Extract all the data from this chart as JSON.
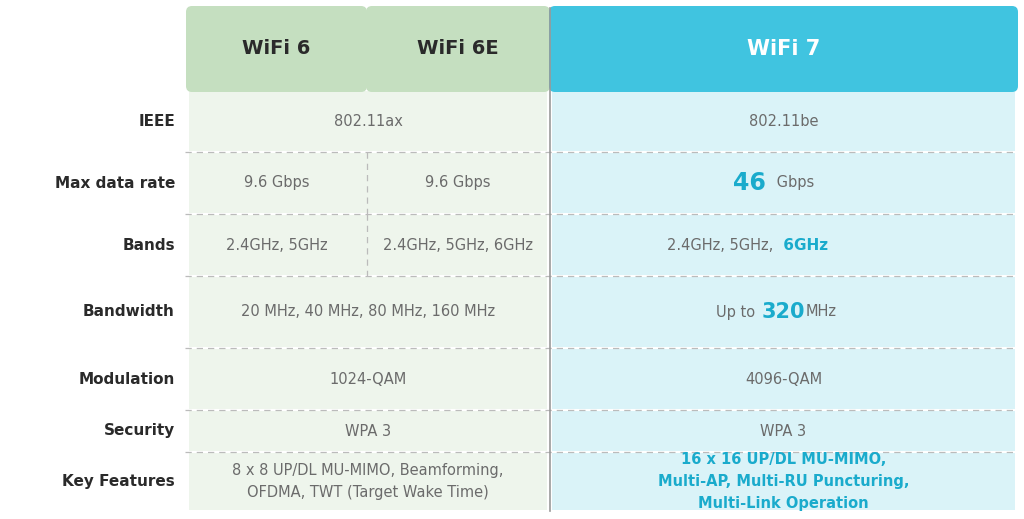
{
  "bg_color": "#ffffff",
  "header_green": "#c5dfc0",
  "header_blue": "#40c4e0",
  "cell_green": "#eef5ec",
  "cell_blue": "#daf3f8",
  "accent_blue": "#1aabcc",
  "text_dark": "#6b6b6b",
  "text_black": "#2a2a2a",
  "divider_color": "#bbbbbb",
  "row_labels": [
    "IEEE",
    "Max data rate",
    "Bands",
    "Bandwidth",
    "Modulation",
    "Security",
    "Key Features"
  ],
  "wifi6_values": [
    "802.11ax",
    "9.6 Gbps",
    "2.4GHz, 5GHz",
    "20 MHz, 40 MHz, 80 MHz, 160 MHz",
    "1024-QAM",
    "WPA 3",
    "8 x 8 UP/DL MU-MIMO, Beamforming,\nOFDMA, TWT (Target Wake Time)"
  ],
  "wifi6e_values": [
    "802.11ax",
    "9.6 Gbps",
    "2.4GHz, 5GHz, 6GHz",
    "20 MHz, 40 MHz, 80 MHz, 160 MHz",
    "1024-QAM",
    "WPA 3",
    "8 x 8 UP/DL MU-MIMO, Beamforming,\nOFDMA, TWT (Target Wake Time)"
  ],
  "wifi7_values": [
    "802.11be",
    "46 Gbps",
    "2.4GHz, 5GHz, 6GHz",
    "Up to 320 MHz",
    "4096-QAM",
    "WPA 3",
    "16 x 16 UP/DL MU-MIMO,\nMulti-AP, Multi-RU Puncturing,\nMulti-Link Operation"
  ],
  "col_headers": [
    "WiFi 6",
    "WiFi 6E",
    "WiFi 7"
  ],
  "shared_rows": [
    0,
    3,
    4,
    5,
    6
  ]
}
